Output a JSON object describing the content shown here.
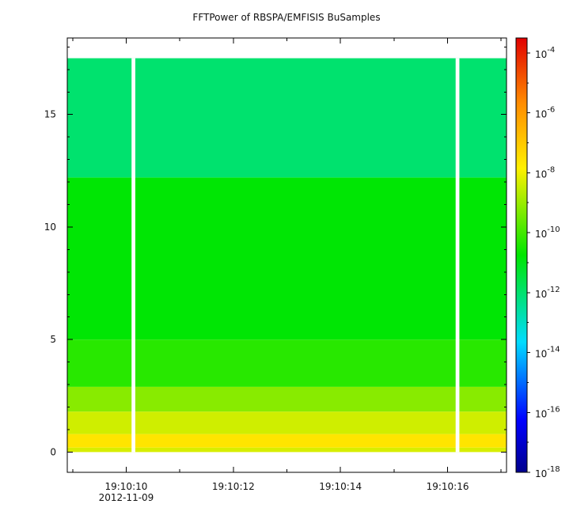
{
  "chart_data": {
    "type": "heatmap",
    "title": "FFTPower of RBSPA/EMFISIS  BuSamples",
    "xlabel": "",
    "ylabel": "",
    "date_label": "2012-11-09",
    "x_axis": {
      "unit": "time",
      "range": [
        "19:10:08.9",
        "19:10:17.1"
      ],
      "major_ticks": [
        "19:10:10",
        "19:10:12",
        "19:10:14",
        "19:10:16"
      ],
      "minor_ticks": [
        "19:10:09",
        "19:10:11",
        "19:10:13",
        "19:10:15",
        "19:10:17"
      ]
    },
    "y_axis": {
      "range": [
        -0.9,
        18.4
      ],
      "ticks": [
        0,
        5,
        10,
        15
      ],
      "minor_ticks": [
        1,
        2,
        3,
        4,
        6,
        7,
        8,
        9,
        11,
        12,
        13,
        14,
        16,
        17,
        18
      ],
      "data_extent": [
        0,
        17.5
      ]
    },
    "colorbar": {
      "scale": "log",
      "range_exponents": [
        -18,
        -3.5
      ],
      "tick_exponents": [
        -4,
        -6,
        -8,
        -10,
        -12,
        -14,
        -16,
        -18
      ],
      "tick_base": "10"
    },
    "gaps": [
      {
        "start": "19:10:10.1",
        "end": "19:10:10.17"
      },
      {
        "start": "19:10:16.15",
        "end": "19:10:16.22"
      }
    ],
    "bands": [
      {
        "y_from": 0.0,
        "y_to": 0.2,
        "log10_power": -8.3
      },
      {
        "y_from": 0.2,
        "y_to": 0.8,
        "log10_power": -7.6
      },
      {
        "y_from": 0.8,
        "y_to": 1.8,
        "log10_power": -8.4
      },
      {
        "y_from": 1.8,
        "y_to": 2.9,
        "log10_power": -9.2
      },
      {
        "y_from": 2.9,
        "y_to": 5.0,
        "log10_power": -10.3
      },
      {
        "y_from": 5.0,
        "y_to": 12.2,
        "log10_power": -10.8
      },
      {
        "y_from": 12.2,
        "y_to": 17.5,
        "log10_power": -12.0
      }
    ],
    "grid": false,
    "legend": "colorbar-right"
  }
}
